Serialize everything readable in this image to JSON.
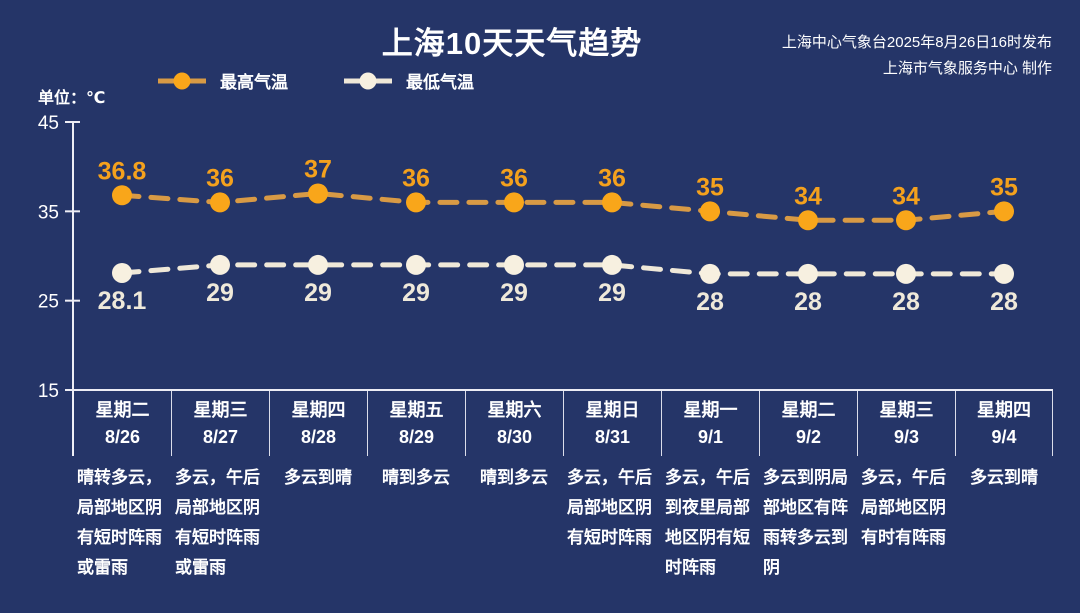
{
  "title": "上海10天天气趋势",
  "source": {
    "line1": "上海中心气象台2025年8月26日16时发布",
    "line2": "上海市气象服务中心 制作"
  },
  "unit_label": "单位：℃",
  "colors": {
    "background": "#253568",
    "axis": "#EDEDF5",
    "text": "#FFFFFF",
    "max_accent": "#F9A61A",
    "min_accent": "#F7F0E0"
  },
  "chart_data": {
    "type": "line",
    "title": "上海10天天气趋势",
    "ylabel": "单位：℃",
    "ylim": [
      15,
      45
    ],
    "yticks": [
      45,
      35,
      25,
      15
    ],
    "grid": false,
    "legend_position": "top-left",
    "line_style": "dashed",
    "weekdays": [
      "星期二",
      "星期三",
      "星期四",
      "星期五",
      "星期六",
      "星期日",
      "星期一",
      "星期二",
      "星期三",
      "星期四"
    ],
    "categories": [
      "8/26",
      "8/27",
      "8/28",
      "8/29",
      "8/30",
      "8/31",
      "9/1",
      "9/2",
      "9/3",
      "9/4"
    ],
    "series": [
      {
        "name": "最高气温",
        "values": [
          36.8,
          36,
          37,
          36,
          36,
          36,
          35,
          34,
          34,
          35
        ],
        "point_color": "#F9A61A",
        "line_color": "#D89A45",
        "label_color": "#F4A11D"
      },
      {
        "name": "最低气温",
        "values": [
          28.1,
          29,
          29,
          29,
          29,
          29,
          28,
          28,
          28,
          28
        ],
        "point_color": "#F7F0E0",
        "line_color": "#EFE8D8",
        "label_color": "#EFE9DA"
      }
    ],
    "weather": [
      "晴转多云，局部地区阴有短时阵雨或雷雨",
      "多云，午后局部地区阴有短时阵雨或雷雨",
      "多云到晴",
      "晴到多云",
      "晴到多云",
      "多云，午后局部地区阴有短时阵雨",
      "多云，午后到夜里局部地区阴有短时阵雨",
      "多云到阴局部地区有阵雨转多云到阴",
      "多云，午后局部地区阴有时有阵雨",
      "多云到晴"
    ]
  }
}
